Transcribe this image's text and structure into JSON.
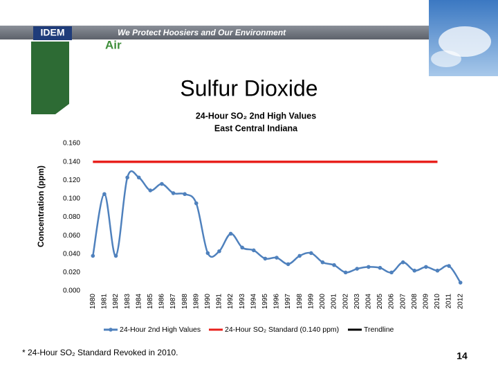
{
  "header": {
    "logo": "IDEM",
    "slogan": "We Protect Hoosiers and Our Environment",
    "section": "Air"
  },
  "chart_data": {
    "type": "line",
    "title": "Sulfur Dioxide",
    "subtitle": [
      "24-Hour SO₂ 2nd High Values",
      "East Central Indiana"
    ],
    "ylabel": "Concentration (ppm)",
    "categories": [
      "1980",
      "1981",
      "1982",
      "1983",
      "1984",
      "1985",
      "1986",
      "1987",
      "1988",
      "1989",
      "1990",
      "1991",
      "1992",
      "1993",
      "1994",
      "1995",
      "1996",
      "1997",
      "1998",
      "1999",
      "2000",
      "2001",
      "2002",
      "2003",
      "2004",
      "2005",
      "2006",
      "2007",
      "2008",
      "2009",
      "2010",
      "2011",
      "2012"
    ],
    "series": [
      {
        "name": "24-Hour 2nd High Values",
        "color": "#4f81bd",
        "marker": true,
        "values": [
          0.038,
          0.105,
          0.038,
          0.123,
          0.123,
          0.109,
          0.116,
          0.106,
          0.105,
          0.095,
          0.041,
          0.043,
          0.062,
          0.047,
          0.044,
          0.035,
          0.036,
          0.029,
          0.038,
          0.041,
          0.031,
          0.028,
          0.02,
          0.024,
          0.026,
          0.025,
          0.02,
          0.031,
          0.022,
          0.026,
          0.022,
          0.027,
          0.009
        ]
      },
      {
        "name": "24-Hour SO₂ Standard (0.140 ppm)",
        "color": "#e8201c",
        "marker": false,
        "values": [
          0.14,
          0.14,
          0.14,
          0.14,
          0.14,
          0.14,
          0.14,
          0.14,
          0.14,
          0.14,
          0.14,
          0.14,
          0.14,
          0.14,
          0.14,
          0.14,
          0.14,
          0.14,
          0.14,
          0.14,
          0.14,
          0.14,
          0.14,
          0.14,
          0.14,
          0.14,
          0.14,
          0.14,
          0.14,
          0.14,
          0.14,
          null,
          null
        ]
      },
      {
        "name": "Trendline",
        "color": "#000000",
        "marker": false,
        "values": [
          null,
          null,
          null,
          null,
          null,
          null,
          null,
          null,
          null,
          null,
          null,
          null,
          null,
          null,
          null,
          null,
          null,
          null,
          null,
          null,
          null,
          null,
          null,
          null,
          null,
          null,
          null,
          null,
          null,
          null,
          null,
          null,
          null
        ]
      }
    ],
    "ylim": [
      0,
      0.16
    ],
    "yticks": [
      {
        "value": 0,
        "label": "0.000"
      },
      {
        "value": 0.02,
        "label": "0.020"
      },
      {
        "value": 0.04,
        "label": "0.040"
      },
      {
        "value": 0.06,
        "label": "0.060"
      },
      {
        "value": 0.08,
        "label": "0.080"
      },
      {
        "value": 0.1,
        "label": "0.100"
      },
      {
        "value": 0.12,
        "label": "0.120"
      },
      {
        "value": 0.14,
        "label": "0.140"
      },
      {
        "value": 0.16,
        "label": "0.160"
      }
    ],
    "grid": false
  },
  "footnote": "* 24-Hour SO₂ Standard Revoked in 2010.",
  "page_number": "14"
}
